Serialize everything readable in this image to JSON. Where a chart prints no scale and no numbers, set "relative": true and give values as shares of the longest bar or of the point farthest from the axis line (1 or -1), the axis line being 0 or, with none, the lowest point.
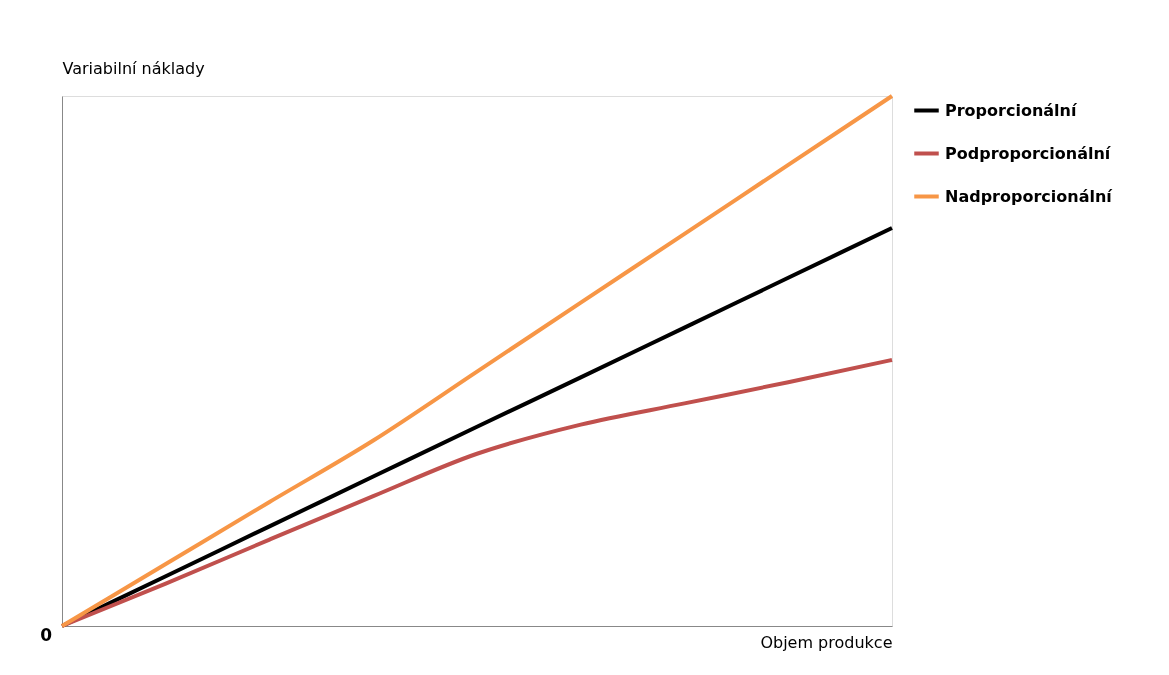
{
  "chart_data": {
    "type": "line",
    "relative": true,
    "xlabel": "Objem produkce",
    "ylabel": "Variabilní náklady",
    "categories": [
      null,
      null,
      null,
      null,
      null,
      null,
      null,
      null,
      null
    ],
    "series": [
      {
        "name": "Proporcionální",
        "color": "#000000",
        "values": [
          0,
          0.094,
          0.188,
          0.282,
          0.376,
          0.469,
          0.563,
          0.657,
          0.751
        ]
      },
      {
        "name": "Podproporcionální",
        "color": "#c0504d",
        "values": [
          0,
          0.08,
          0.163,
          0.245,
          0.325,
          0.38,
          0.42,
          0.46,
          0.502
        ]
      },
      {
        "name": "Nadproporcionální",
        "color": "#f79646",
        "values": [
          0,
          0.117,
          0.234,
          0.35,
          0.48,
          0.61,
          0.74,
          0.87,
          1.0
        ]
      }
    ],
    "annotations": [
      "0"
    ],
    "legend": "right",
    "grid": false,
    "marker": "none",
    "line_style": "solid"
  }
}
